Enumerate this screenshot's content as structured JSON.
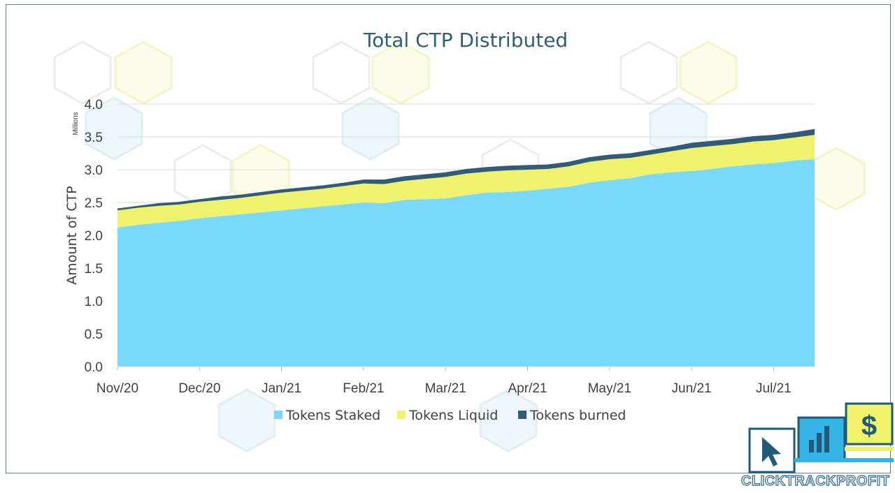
{
  "chart_data": {
    "type": "area",
    "stacked": true,
    "title": "Total CTP Distributed",
    "ylabel": "Amount of CTP",
    "y_unit_label": "Millions",
    "ylim": [
      0,
      4.0
    ],
    "y_ticks": [
      "0.0",
      "0.5",
      "1.0",
      "1.5",
      "2.0",
      "2.5",
      "3.0",
      "3.5",
      "4.0"
    ],
    "x_tick_labels": [
      "Nov/20",
      "Dec/20",
      "Jan/21",
      "Feb/21",
      "Mar/21",
      "Apr/21",
      "May/21",
      "Jun/21",
      "Jul/21"
    ],
    "x_tick_positions": [
      0,
      1,
      2,
      3,
      4,
      5,
      6,
      7,
      8
    ],
    "grid": true,
    "legend_position": "bottom",
    "x": [
      0,
      0.25,
      0.5,
      0.75,
      1.0,
      1.25,
      1.5,
      1.75,
      2.0,
      2.25,
      2.5,
      2.75,
      3.0,
      3.25,
      3.5,
      3.75,
      4.0,
      4.25,
      4.5,
      4.75,
      5.0,
      5.25,
      5.5,
      5.75,
      6.0,
      6.25,
      6.5,
      6.75,
      7.0,
      7.25,
      7.5,
      7.75,
      8.0,
      8.25,
      8.5
    ],
    "series": [
      {
        "name": "Tokens Staked",
        "color": "#78d9fb",
        "values": [
          2.12,
          2.16,
          2.19,
          2.22,
          2.26,
          2.29,
          2.32,
          2.35,
          2.38,
          2.41,
          2.44,
          2.47,
          2.5,
          2.49,
          2.54,
          2.55,
          2.56,
          2.61,
          2.65,
          2.66,
          2.68,
          2.71,
          2.74,
          2.8,
          2.84,
          2.87,
          2.93,
          2.96,
          2.98,
          3.01,
          3.05,
          3.08,
          3.1,
          3.14,
          3.16
        ]
      },
      {
        "name": "Tokens Liquid",
        "color": "#eef26c",
        "values": [
          0.26,
          0.26,
          0.26,
          0.25,
          0.25,
          0.25,
          0.25,
          0.26,
          0.27,
          0.27,
          0.27,
          0.28,
          0.29,
          0.29,
          0.29,
          0.31,
          0.33,
          0.33,
          0.32,
          0.33,
          0.32,
          0.3,
          0.31,
          0.32,
          0.32,
          0.31,
          0.3,
          0.32,
          0.35,
          0.35,
          0.34,
          0.35,
          0.35,
          0.35,
          0.37
        ]
      },
      {
        "name": "Tokens burned",
        "color": "#315b78",
        "values": [
          0.03,
          0.03,
          0.04,
          0.04,
          0.04,
          0.05,
          0.05,
          0.05,
          0.05,
          0.05,
          0.05,
          0.05,
          0.06,
          0.07,
          0.07,
          0.07,
          0.07,
          0.07,
          0.07,
          0.07,
          0.07,
          0.07,
          0.07,
          0.07,
          0.07,
          0.07,
          0.07,
          0.07,
          0.08,
          0.08,
          0.08,
          0.08,
          0.08,
          0.08,
          0.09
        ]
      }
    ]
  },
  "logo": {
    "text": "CLICKTRACKPROFIT",
    "dollar": "$",
    "colors": {
      "blue": "#35b4e6",
      "yellow": "#f0f26a",
      "navy": "#1f5a7a"
    }
  }
}
